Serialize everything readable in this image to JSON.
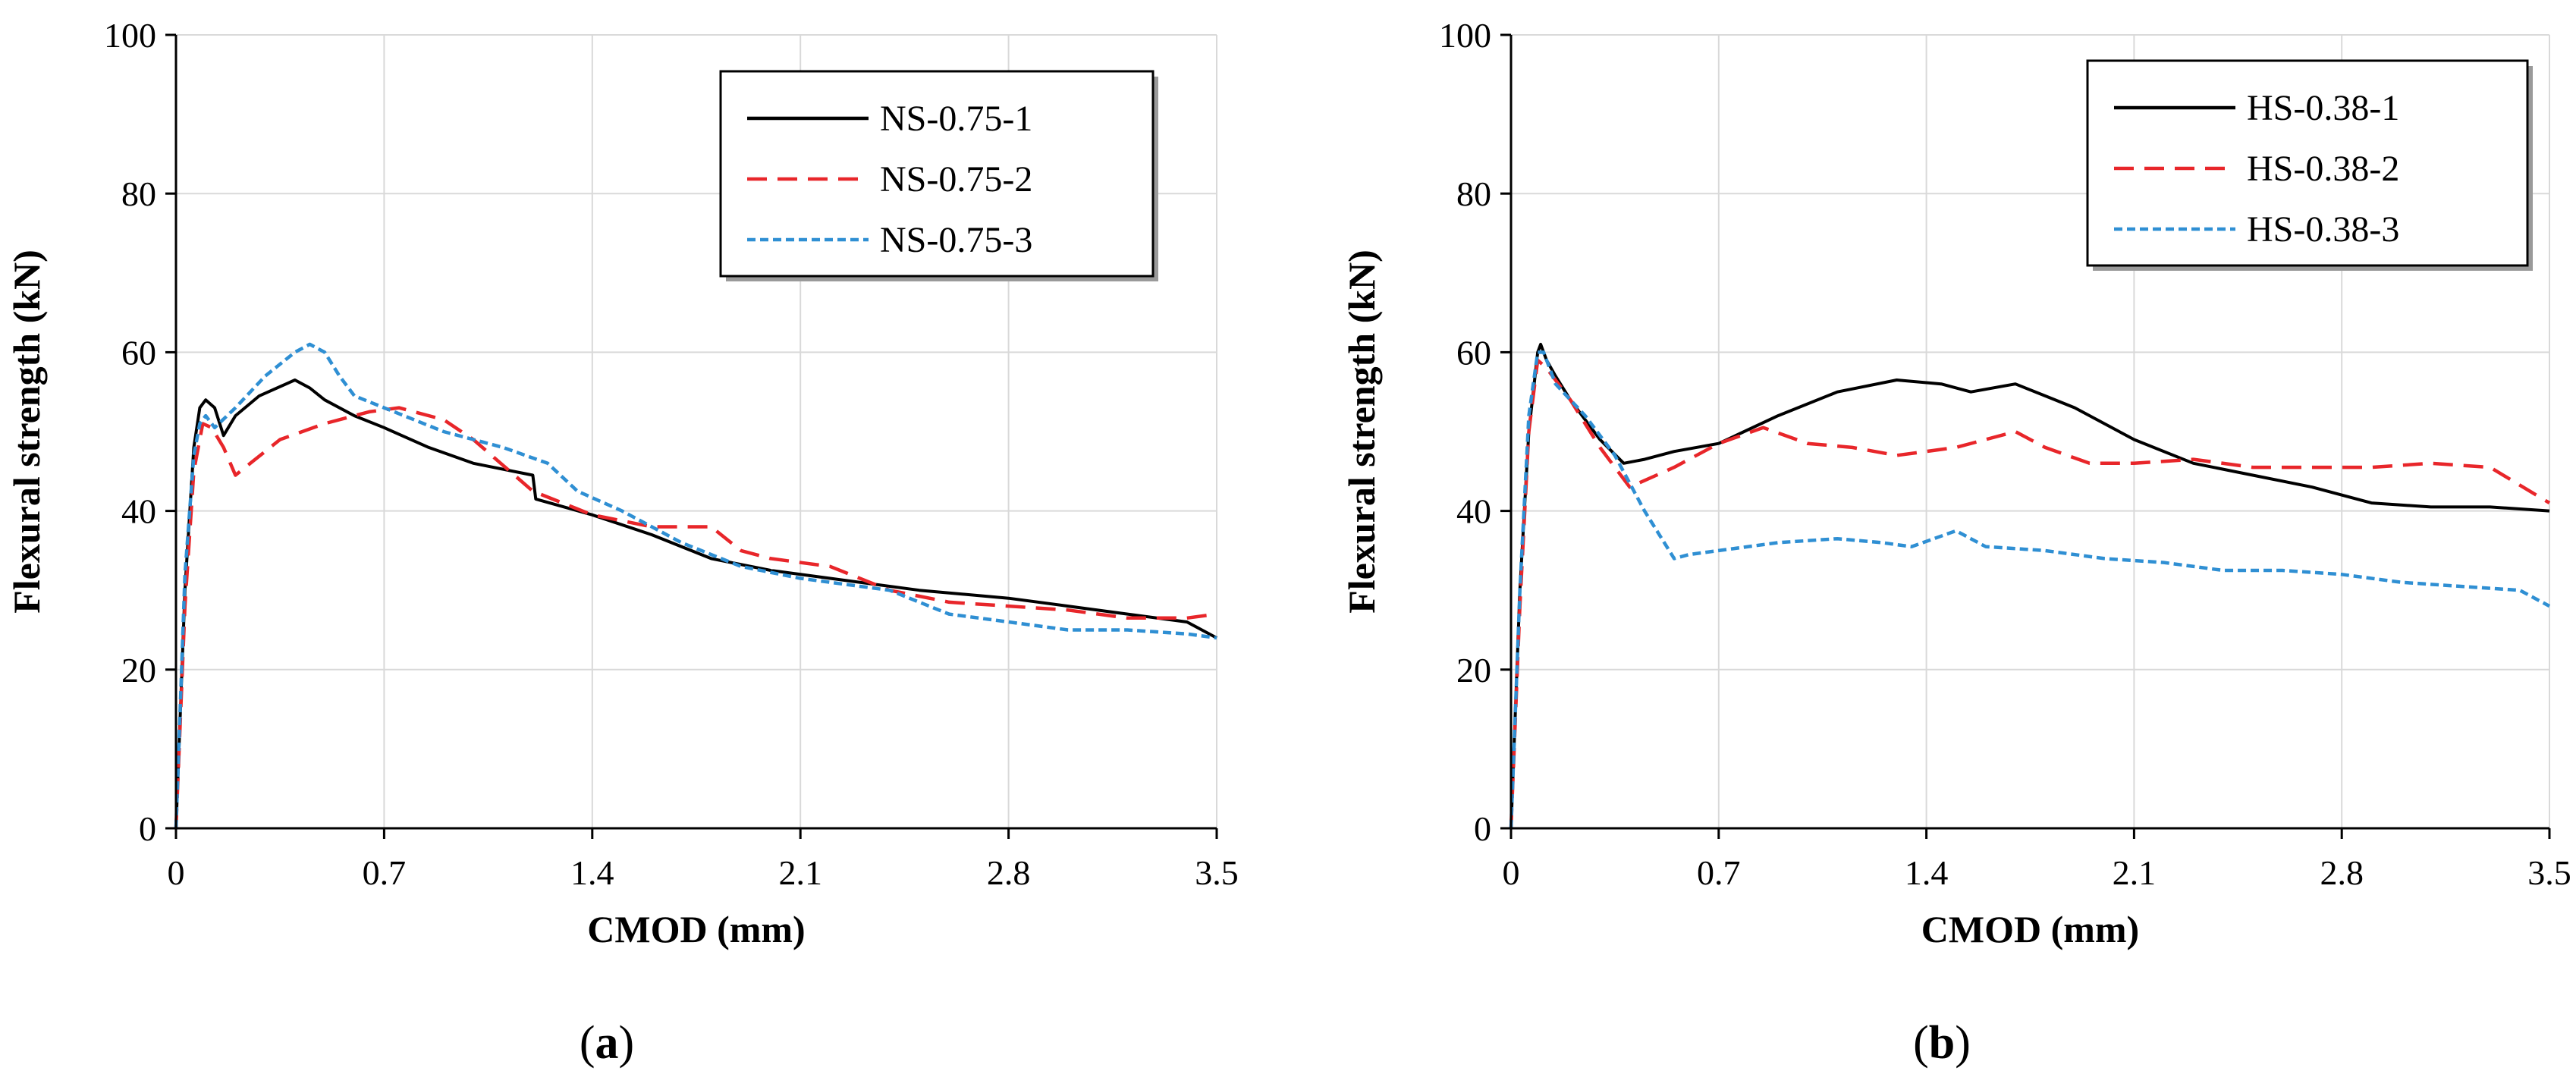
{
  "chart_data": [
    {
      "type": "line",
      "panel_label": "a",
      "xlabel": "CMOD (mm)",
      "ylabel": "Flexural strength (kN)",
      "xlim": [
        0,
        3.5
      ],
      "ylim": [
        0,
        100
      ],
      "xticks": [
        "0",
        "0.7",
        "1.4",
        "2.1",
        "2.8",
        "3.5"
      ],
      "yticks": [
        "0",
        "20",
        "40",
        "60",
        "80",
        "100"
      ],
      "grid": true,
      "legend_position": "top-right",
      "series": [
        {
          "name": "NS-0.75-1",
          "color": "#000000",
          "style": "solid",
          "x": [
            0,
            0.03,
            0.06,
            0.08,
            0.1,
            0.13,
            0.16,
            0.2,
            0.28,
            0.4,
            0.45,
            0.5,
            0.6,
            0.7,
            0.85,
            1.0,
            1.2,
            1.21,
            1.4,
            1.6,
            1.8,
            2.0,
            2.2,
            2.5,
            2.8,
            3.0,
            3.2,
            3.4,
            3.5
          ],
          "y": [
            0,
            30,
            48,
            53,
            54,
            53,
            49.5,
            52,
            54.5,
            56.5,
            55.5,
            54,
            52,
            50.5,
            48,
            46,
            44.5,
            41.5,
            39.5,
            37,
            34,
            32.5,
            31.5,
            30,
            29,
            28,
            27,
            26,
            24
          ]
        },
        {
          "name": "NS-0.75-2",
          "color": "#e8262a",
          "style": "dashed",
          "x": [
            0,
            0.03,
            0.06,
            0.09,
            0.12,
            0.16,
            0.2,
            0.25,
            0.35,
            0.5,
            0.65,
            0.75,
            0.9,
            1.0,
            1.2,
            1.4,
            1.6,
            1.8,
            1.9,
            2.0,
            2.2,
            2.4,
            2.6,
            2.8,
            3.0,
            3.2,
            3.4,
            3.5
          ],
          "y": [
            0,
            28,
            45,
            51,
            50.5,
            48,
            44.5,
            46,
            49,
            51,
            52.5,
            53,
            51.5,
            49,
            42.5,
            39.5,
            38,
            38,
            35,
            34,
            33,
            30,
            28.5,
            28,
            27.5,
            26.5,
            26.5,
            27
          ]
        },
        {
          "name": "NS-0.75-3",
          "color": "#2f8fd3",
          "style": "dotted",
          "x": [
            0,
            0.03,
            0.06,
            0.08,
            0.1,
            0.13,
            0.2,
            0.3,
            0.4,
            0.45,
            0.5,
            0.55,
            0.6,
            0.7,
            0.9,
            1.1,
            1.25,
            1.35,
            1.5,
            1.7,
            1.9,
            2.1,
            2.4,
            2.6,
            2.8,
            3.0,
            3.2,
            3.4,
            3.5
          ],
          "y": [
            0,
            32,
            47,
            51,
            52,
            50.5,
            53,
            57,
            60,
            61,
            60,
            57,
            54.5,
            53,
            50,
            48,
            46,
            42.5,
            40,
            36,
            33,
            31.5,
            30,
            27,
            26,
            25,
            25,
            24.5,
            24
          ]
        }
      ]
    },
    {
      "type": "line",
      "panel_label": "b",
      "xlabel": "CMOD (mm)",
      "ylabel": "Flexural strength (kN)",
      "xlim": [
        0,
        3.5
      ],
      "ylim": [
        0,
        100
      ],
      "xticks": [
        "0",
        "0.7",
        "1.4",
        "2.1",
        "2.8",
        "3.5"
      ],
      "yticks": [
        "0",
        "20",
        "40",
        "60",
        "80",
        "100"
      ],
      "grid": true,
      "legend_position": "top-right",
      "series": [
        {
          "name": "HS-0.38-1",
          "color": "#000000",
          "style": "solid",
          "x": [
            0,
            0.03,
            0.06,
            0.09,
            0.1,
            0.12,
            0.15,
            0.2,
            0.3,
            0.38,
            0.45,
            0.55,
            0.7,
            0.9,
            1.1,
            1.3,
            1.45,
            1.55,
            1.7,
            1.8,
            1.9,
            2.1,
            2.3,
            2.5,
            2.7,
            2.9,
            3.1,
            3.3,
            3.5
          ],
          "y": [
            0,
            30,
            50,
            60,
            61,
            59,
            57,
            54,
            49,
            46,
            46.5,
            47.5,
            48.5,
            52,
            55,
            56.5,
            56,
            55,
            56,
            54.5,
            53,
            49,
            46,
            44.5,
            43,
            41,
            40.5,
            40.5,
            40
          ]
        },
        {
          "name": "HS-0.38-2",
          "color": "#e8262a",
          "style": "dashed",
          "x": [
            0,
            0.03,
            0.06,
            0.09,
            0.12,
            0.2,
            0.3,
            0.4,
            0.55,
            0.7,
            0.85,
            1.0,
            1.15,
            1.3,
            1.5,
            1.7,
            1.8,
            1.95,
            2.1,
            2.3,
            2.5,
            2.7,
            2.9,
            3.1,
            3.3,
            3.5
          ],
          "y": [
            0,
            28,
            50,
            59,
            58,
            54,
            48,
            43,
            45.5,
            48.5,
            50.5,
            48.5,
            48,
            47,
            48,
            50,
            48,
            46,
            46,
            46.5,
            45.5,
            45.5,
            45.5,
            46,
            45.5,
            41
          ]
        },
        {
          "name": "HS-0.38-3",
          "color": "#2f8fd3",
          "style": "dotted",
          "x": [
            0,
            0.03,
            0.06,
            0.09,
            0.11,
            0.15,
            0.25,
            0.35,
            0.45,
            0.55,
            0.6,
            0.7,
            0.9,
            1.1,
            1.25,
            1.35,
            1.5,
            1.6,
            1.8,
            2.0,
            2.2,
            2.4,
            2.6,
            2.8,
            3.0,
            3.2,
            3.4,
            3.5
          ],
          "y": [
            0,
            30,
            52,
            60,
            60,
            56,
            52,
            47,
            40,
            34,
            34.5,
            35,
            36,
            36.5,
            36,
            35.5,
            37.5,
            35.5,
            35,
            34,
            33.5,
            32.5,
            32.5,
            32,
            31,
            30.5,
            30,
            28
          ]
        }
      ]
    }
  ]
}
